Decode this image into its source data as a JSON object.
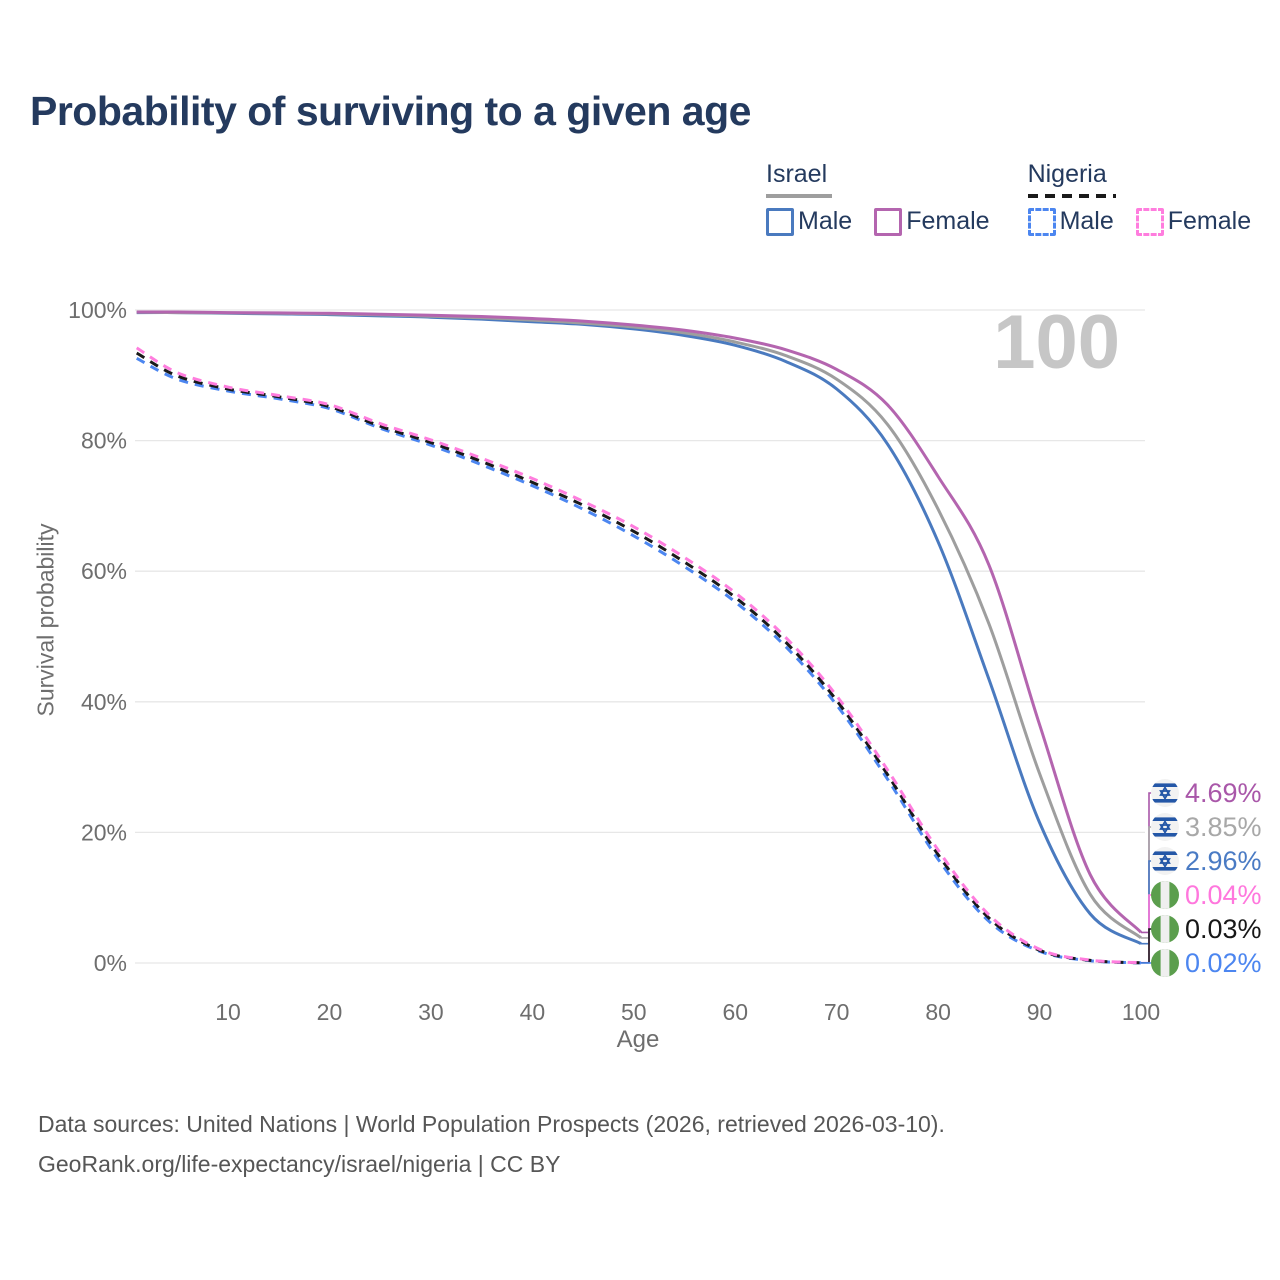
{
  "title": "Probability of surviving to a given age",
  "watermark": "100",
  "legend": {
    "groups": [
      {
        "id": "israel",
        "label": "Israel",
        "line_style": "solid",
        "line_color": "#9e9e9e",
        "items": [
          {
            "id": "israel-male",
            "label": "Male",
            "color": "#4a7abf",
            "dash": false
          },
          {
            "id": "israel-female",
            "label": "Female",
            "color": "#b465af",
            "dash": false
          }
        ]
      },
      {
        "id": "nigeria",
        "label": "Nigeria",
        "line_style": "dashed",
        "line_color": "#1a1a1a",
        "items": [
          {
            "id": "nigeria-male",
            "label": "Male",
            "color": "#4c86f0",
            "dash": true
          },
          {
            "id": "nigeria-female",
            "label": "Female",
            "color": "#ff7dde",
            "dash": true
          }
        ]
      }
    ]
  },
  "axes": {
    "y_label": "Survival probability",
    "x_label": "Age",
    "y_ticks": [
      "0%",
      "20%",
      "40%",
      "60%",
      "80%",
      "100%"
    ],
    "x_ticks": [
      10,
      20,
      30,
      40,
      50,
      60,
      70,
      80,
      90,
      100
    ],
    "grid_color": "#e7e7e7",
    "tick_color": "#6e6e6e"
  },
  "end_labels": [
    {
      "flag": "israel",
      "value": "4.69%",
      "color": "#a957a9",
      "series": "israel-female"
    },
    {
      "flag": "israel",
      "value": "3.85%",
      "color": "#a8a8a8",
      "series": "israel-both"
    },
    {
      "flag": "israel",
      "value": "2.96%",
      "color": "#4a7bc4",
      "series": "israel-male"
    },
    {
      "flag": "nigeria",
      "value": "0.04%",
      "color": "#ff77dd",
      "series": "nigeria-female"
    },
    {
      "flag": "nigeria",
      "value": "0.03%",
      "color": "#171717",
      "series": "nigeria-both"
    },
    {
      "flag": "nigeria",
      "value": "0.02%",
      "color": "#4c86f0",
      "series": "nigeria-male"
    }
  ],
  "footer": {
    "line1": "Data sources: United Nations | World Population Prospects (2026, retrieved 2026-03-10).",
    "line2": "GeoRank.org/life-expectancy/israel/nigeria | CC BY"
  },
  "chart_data": {
    "type": "line",
    "title": "Probability of surviving to a given age",
    "xlabel": "Age",
    "ylabel": "Survival probability",
    "xlim": [
      1,
      100
    ],
    "ylim": [
      0,
      100
    ],
    "grid": true,
    "legend_position": "top-right",
    "x": [
      1,
      5,
      10,
      15,
      20,
      25,
      30,
      35,
      40,
      45,
      50,
      55,
      60,
      65,
      70,
      75,
      80,
      85,
      90,
      95,
      100
    ],
    "series": [
      {
        "name": "Israel Male",
        "id": "israel-male",
        "country": "Israel",
        "sex": "male",
        "color": "#4a7abf",
        "dash": false,
        "values": [
          99.6,
          99.6,
          99.5,
          99.4,
          99.3,
          99.1,
          98.9,
          98.6,
          98.2,
          97.8,
          97.1,
          96.1,
          94.6,
          92.1,
          87.9,
          79.5,
          64.5,
          43.5,
          21.5,
          7.5,
          2.96
        ]
      },
      {
        "name": "Israel Both sexes",
        "id": "israel-both",
        "country": "Israel",
        "sex": "both",
        "color": "#9e9e9e",
        "dash": false,
        "values": [
          99.65,
          99.6,
          99.55,
          99.5,
          99.4,
          99.25,
          99.05,
          98.8,
          98.45,
          98.0,
          97.4,
          96.5,
          95.1,
          93.0,
          89.4,
          82.5,
          69.5,
          52.0,
          29.0,
          10.5,
          3.85
        ]
      },
      {
        "name": "Israel Female",
        "id": "israel-female",
        "country": "Israel",
        "sex": "female",
        "color": "#b465af",
        "dash": false,
        "values": [
          99.7,
          99.7,
          99.6,
          99.55,
          99.5,
          99.35,
          99.2,
          99.0,
          98.7,
          98.3,
          97.7,
          96.9,
          95.7,
          93.9,
          90.9,
          85.5,
          74.5,
          61.0,
          36.5,
          13.5,
          4.69
        ]
      },
      {
        "name": "Nigeria Male",
        "id": "nigeria-male",
        "country": "Nigeria",
        "sex": "male",
        "color": "#4c86f0",
        "dash": true,
        "values": [
          92.6,
          89.4,
          87.6,
          86.4,
          84.9,
          81.9,
          79.3,
          76.3,
          73.1,
          69.5,
          65.4,
          60.7,
          55.3,
          48.4,
          39.5,
          28.2,
          15.9,
          6.4,
          1.8,
          0.35,
          0.02
        ]
      },
      {
        "name": "Nigeria Both sexes",
        "id": "nigeria-both",
        "country": "Nigeria",
        "sex": "both",
        "color": "#1a1a1a",
        "dash": true,
        "values": [
          93.4,
          89.9,
          87.9,
          86.7,
          85.2,
          82.2,
          79.7,
          76.8,
          73.6,
          70.1,
          66.1,
          61.4,
          56.0,
          49.1,
          40.2,
          28.9,
          16.6,
          6.9,
          1.95,
          0.4,
          0.03
        ]
      },
      {
        "name": "Nigeria Female",
        "id": "nigeria-female",
        "country": "Nigeria",
        "sex": "female",
        "color": "#ff7dde",
        "dash": true,
        "values": [
          94.2,
          90.4,
          88.2,
          86.9,
          85.5,
          82.6,
          80.1,
          77.3,
          74.2,
          70.7,
          66.8,
          62.1,
          56.7,
          49.8,
          40.9,
          29.6,
          17.3,
          7.4,
          2.1,
          0.45,
          0.04
        ]
      }
    ]
  }
}
